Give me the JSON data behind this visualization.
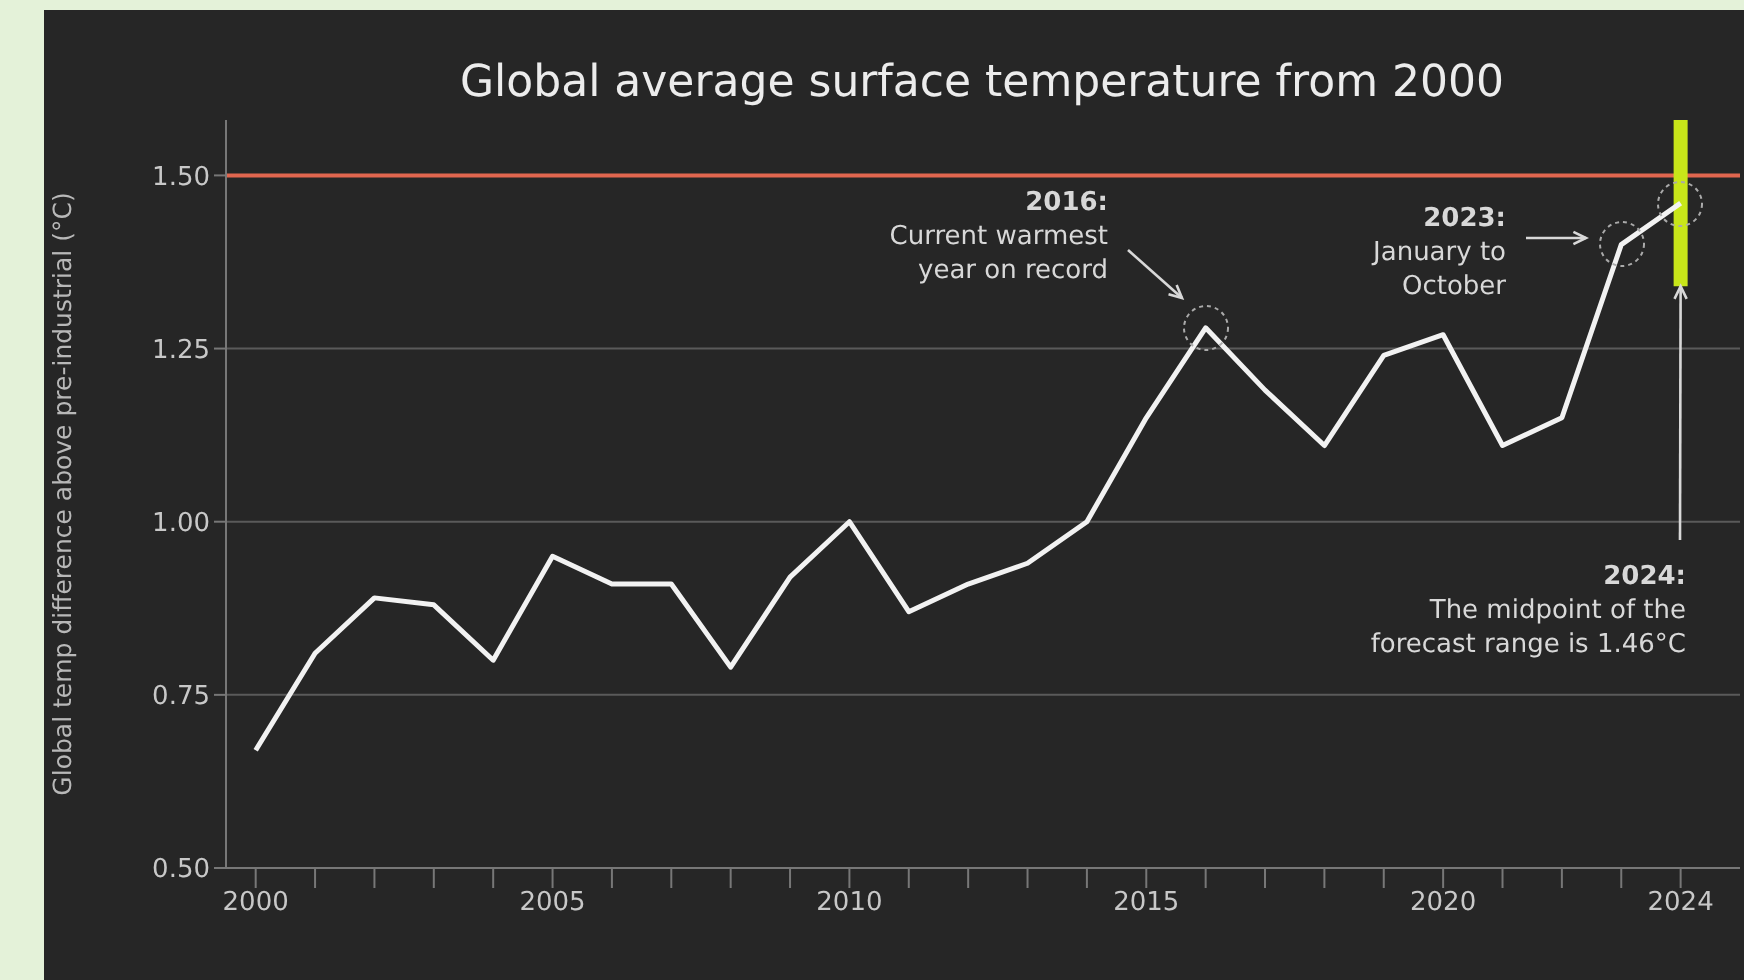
{
  "chart_data": {
    "type": "line",
    "title": "Global average surface temperature from 2000",
    "ylabel": "Global temp difference above pre-industrial (°C)",
    "x": [
      2000,
      2001,
      2002,
      2003,
      2004,
      2005,
      2006,
      2007,
      2008,
      2009,
      2010,
      2011,
      2012,
      2013,
      2014,
      2015,
      2016,
      2017,
      2018,
      2019,
      2020,
      2021,
      2022,
      2023,
      2024
    ],
    "series": [
      {
        "color": "#f2f2f2",
        "values": [
          0.67,
          0.81,
          0.89,
          0.88,
          0.8,
          0.95,
          0.91,
          0.91,
          0.79,
          0.92,
          1.0,
          0.87,
          0.91,
          0.94,
          1.0,
          1.15,
          1.28,
          1.19,
          1.11,
          1.24,
          1.27,
          1.11,
          1.15,
          1.4,
          1.46
        ],
        "errors": [
          null,
          null,
          null,
          null,
          null,
          null,
          null,
          null,
          null,
          null,
          null,
          null,
          null,
          null,
          null,
          null,
          null,
          null,
          null,
          null,
          null,
          null,
          null,
          null,
          [
            1.34,
            1.58
          ]
        ]
      }
    ],
    "xlim": [
      1999.5,
      2025
    ],
    "xticks": [
      2000,
      {
        "value": 2001,
        "label": null
      },
      {
        "value": 2002,
        "label": null
      },
      {
        "value": 2003,
        "label": null
      },
      {
        "value": 2004,
        "label": null
      },
      2005,
      {
        "value": 2006,
        "label": null
      },
      {
        "value": 2007,
        "label": null
      },
      {
        "value": 2008,
        "label": null
      },
      {
        "value": 2009,
        "label": null
      },
      2010,
      {
        "value": 2011,
        "label": null
      },
      {
        "value": 2012,
        "label": null
      },
      {
        "value": 2013,
        "label": null
      },
      {
        "value": 2014,
        "label": null
      },
      2015,
      {
        "value": 2016,
        "label": null
      },
      {
        "value": 2017,
        "label": null
      },
      {
        "value": 2018,
        "label": null
      },
      {
        "value": 2019,
        "label": null
      },
      2020,
      {
        "value": 2021,
        "label": null
      },
      {
        "value": 2022,
        "label": null
      },
      {
        "value": 2023,
        "label": null
      },
      2024
    ],
    "ylim": [
      0.5,
      1.58
    ],
    "yticks": [
      {
        "value": 0.5,
        "label": "0.50"
      },
      0.75,
      {
        "value": 1.0,
        "label": "1.00"
      },
      1.25,
      {
        "value": 1.5,
        "label": "1.50"
      }
    ],
    "grid": "y",
    "marker": "none",
    "line_style": "solid",
    "ref_lines": [
      {
        "axis": "y",
        "value": 1.5,
        "color": "#e0664f"
      }
    ],
    "annotations": [
      "2016:\nCurrent warmest\nyear on record",
      "2023:\nJanuary to\nOctober",
      {
        "text": "2024:\nThe midpoint of the\nforecast range is 1.46°C",
        "x": 2024,
        "y": 1.34
      }
    ]
  }
}
